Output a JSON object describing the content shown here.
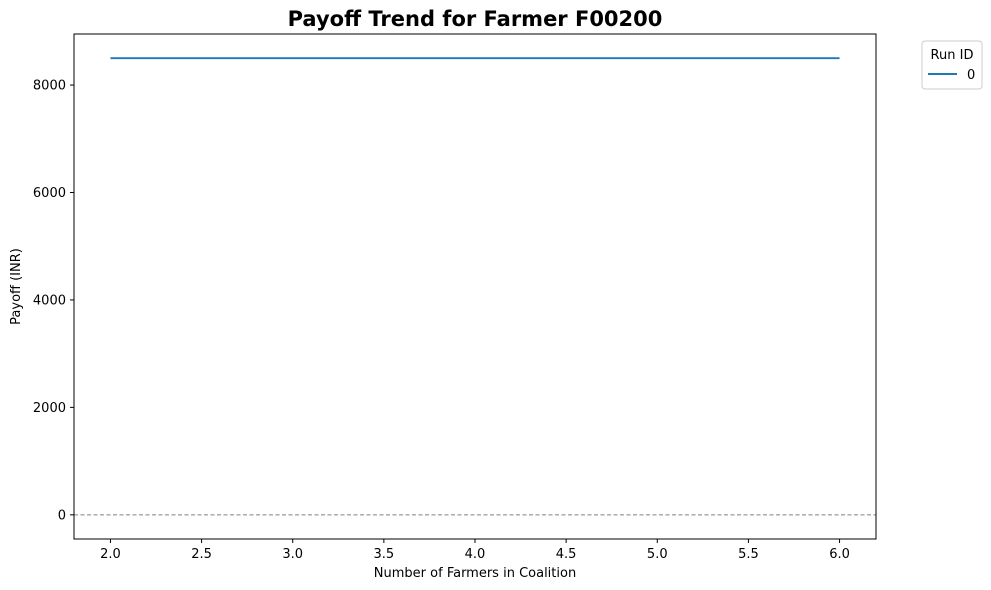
{
  "chart_data": {
    "type": "line",
    "title": "Payoff Trend for Farmer F00200",
    "xlabel": "Number of Farmers in Coalition",
    "ylabel": "Payoff (INR)",
    "xlim": [
      1.8,
      6.2
    ],
    "ylim": [
      -450,
      8950
    ],
    "x_ticks": [
      2.0,
      2.5,
      3.0,
      3.5,
      4.0,
      4.5,
      5.0,
      5.5,
      6.0
    ],
    "x_tick_labels": [
      "2.0",
      "2.5",
      "3.0",
      "3.5",
      "4.0",
      "4.5",
      "5.0",
      "5.5",
      "6.0"
    ],
    "y_ticks": [
      0,
      2000,
      4000,
      6000,
      8000
    ],
    "y_tick_labels": [
      "0",
      "2000",
      "4000",
      "6000",
      "8000"
    ],
    "grid": false,
    "reference_line": {
      "y": 0,
      "style": "dashed",
      "color": "#808080"
    },
    "legend": {
      "title": "Run ID",
      "placement": "outside-top-right"
    },
    "series": [
      {
        "name": "0",
        "color": "#1f77b4",
        "x": [
          2.0,
          3.0,
          4.0,
          5.0,
          6.0
        ],
        "y": [
          8500,
          8500,
          8500,
          8500,
          8500
        ]
      }
    ]
  }
}
